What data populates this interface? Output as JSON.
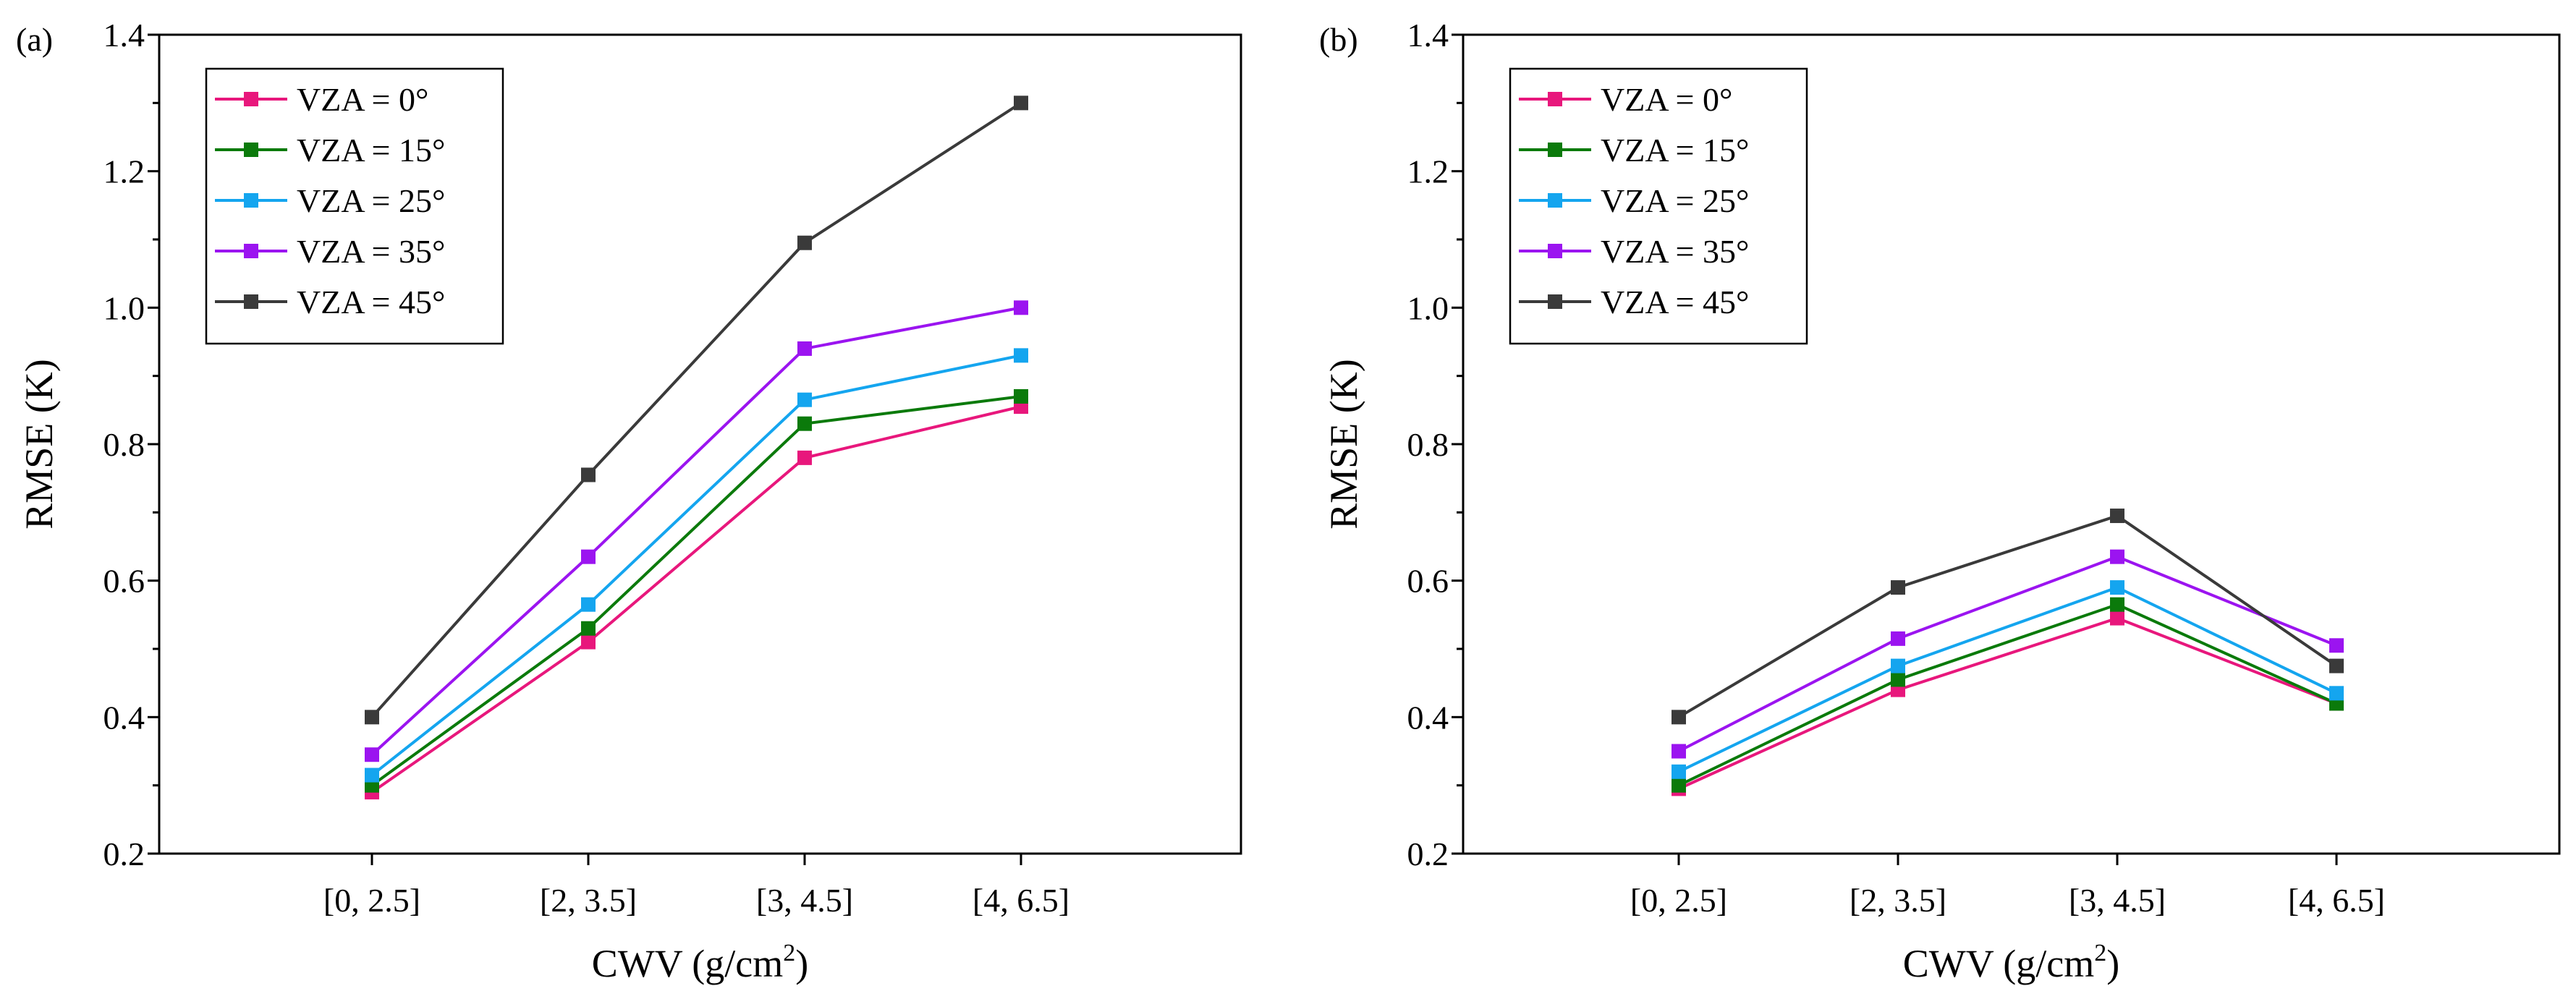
{
  "chart_data": [
    {
      "type": "line",
      "panel": "(a)",
      "categories": [
        "[0, 2.5]",
        "[2, 3.5]",
        "[3, 4.5]",
        "[4, 6.5]"
      ],
      "xlabel": "CWV (g/cm",
      "xlabel_sup": "2",
      "xlabel_close": ")",
      "ylabel": "RMSE (K)",
      "ylim": [
        0.2,
        1.4
      ],
      "yticks": [
        0.2,
        0.4,
        0.6,
        0.8,
        1.0,
        1.2,
        1.4
      ],
      "ytick_labels": [
        "0.2",
        "0.4",
        "0.6",
        "0.8",
        "1.0",
        "1.2",
        "1.4"
      ],
      "legend_position": "top-left",
      "series": [
        {
          "name": "VZA = 0°",
          "color": "#e8177c",
          "values": [
            0.29,
            0.51,
            0.78,
            0.855
          ]
        },
        {
          "name": "VZA = 15°",
          "color": "#0b7a0b",
          "values": [
            0.3,
            0.53,
            0.83,
            0.87
          ]
        },
        {
          "name": "VZA = 25°",
          "color": "#14a5ef",
          "values": [
            0.315,
            0.565,
            0.865,
            0.93
          ]
        },
        {
          "name": "VZA = 35°",
          "color": "#9b14f0",
          "values": [
            0.345,
            0.635,
            0.94,
            1.0
          ]
        },
        {
          "name": "VZA = 45°",
          "color": "#3a3a3a",
          "values": [
            0.4,
            0.755,
            1.095,
            1.3
          ]
        }
      ]
    },
    {
      "type": "line",
      "panel": "(b)",
      "categories": [
        "[0, 2.5]",
        "[2, 3.5]",
        "[3, 4.5]",
        "[4, 6.5]"
      ],
      "xlabel": "CWV (g/cm",
      "xlabel_sup": "2",
      "xlabel_close": ")",
      "ylabel": "RMSE (K)",
      "ylim": [
        0.2,
        1.4
      ],
      "yticks": [
        0.2,
        0.4,
        0.6,
        0.8,
        1.0,
        1.2,
        1.4
      ],
      "ytick_labels": [
        "0.2",
        "0.4",
        "0.6",
        "0.8",
        "1.0",
        "1.2",
        "1.4"
      ],
      "legend_position": "top-left",
      "series": [
        {
          "name": "VZA = 0°",
          "color": "#e8177c",
          "values": [
            0.295,
            0.44,
            0.545,
            0.42
          ]
        },
        {
          "name": "VZA = 15°",
          "color": "#0b7a0b",
          "values": [
            0.3,
            0.455,
            0.565,
            0.42
          ]
        },
        {
          "name": "VZA = 25°",
          "color": "#14a5ef",
          "values": [
            0.32,
            0.475,
            0.59,
            0.435
          ]
        },
        {
          "name": "VZA = 35°",
          "color": "#9b14f0",
          "values": [
            0.35,
            0.515,
            0.635,
            0.505
          ]
        },
        {
          "name": "VZA = 45°",
          "color": "#3a3a3a",
          "values": [
            0.4,
            0.59,
            0.695,
            0.475
          ]
        }
      ]
    }
  ]
}
